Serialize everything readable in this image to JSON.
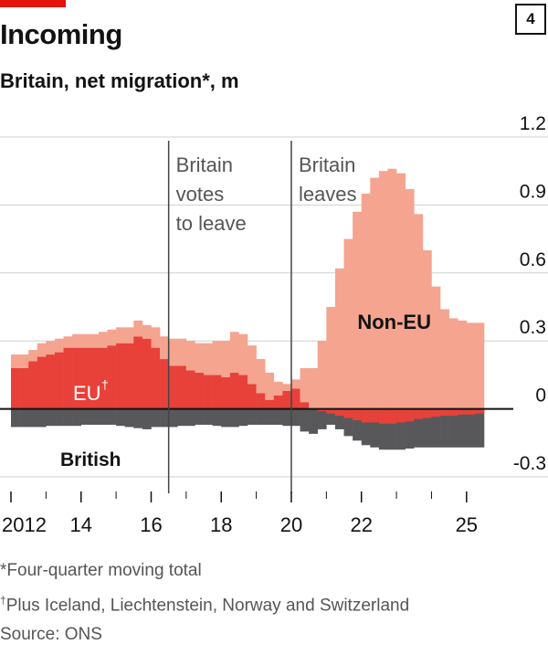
{
  "header": {
    "title": "Incoming",
    "subtitle": "Britain, net migration*, m",
    "chart_number": "4"
  },
  "footnotes": {
    "moving_total": "*Four-quarter moving total",
    "eu_mark": "†",
    "eu_def": "Plus Iceland, Liechtenstein, Norway and Switzerland",
    "source": "Source: ONS"
  },
  "colors": {
    "non_eu": "#f4a48f",
    "eu": "#e8413a",
    "british": "#58585b",
    "grid": "#cfcfcf",
    "axis": "#121212",
    "accent": "#e3120b"
  },
  "chart_data": {
    "type": "bar",
    "stacked": true,
    "x_start": 2012.0,
    "x_step": 0.25,
    "ylim": [
      -0.3,
      1.2
    ],
    "y_ticks": [
      -0.3,
      0,
      0.3,
      0.6,
      0.9,
      1.2
    ],
    "y_tick_labels": [
      "-0.3",
      "0",
      "0.3",
      "0.6",
      "0.9",
      "1.2"
    ],
    "x_ticks": [
      2012,
      2014,
      2016,
      2018,
      2020,
      2022,
      2025
    ],
    "x_tick_labels": [
      "2012",
      "14",
      "16",
      "18",
      "20",
      "22",
      "25"
    ],
    "series": [
      {
        "name": "British",
        "values": [
          -0.08,
          -0.08,
          -0.08,
          -0.08,
          -0.075,
          -0.075,
          -0.075,
          -0.075,
          -0.07,
          -0.07,
          -0.07,
          -0.07,
          -0.075,
          -0.08,
          -0.085,
          -0.09,
          -0.08,
          -0.08,
          -0.08,
          -0.075,
          -0.075,
          -0.07,
          -0.07,
          -0.075,
          -0.08,
          -0.08,
          -0.075,
          -0.07,
          -0.07,
          -0.07,
          -0.07,
          -0.075,
          -0.075,
          -0.1,
          -0.11,
          -0.09,
          -0.07,
          -0.09,
          -0.12,
          -0.14,
          -0.16,
          -0.17,
          -0.18,
          -0.18,
          -0.18,
          -0.175,
          -0.17,
          -0.17,
          -0.17,
          -0.17,
          -0.17,
          -0.17,
          -0.17,
          -0.17
        ]
      },
      {
        "name": "EU†",
        "values": [
          0.18,
          0.18,
          0.21,
          0.23,
          0.24,
          0.25,
          0.27,
          0.27,
          0.27,
          0.27,
          0.27,
          0.28,
          0.29,
          0.29,
          0.32,
          0.31,
          0.27,
          0.22,
          0.19,
          0.19,
          0.17,
          0.16,
          0.15,
          0.15,
          0.14,
          0.16,
          0.15,
          0.11,
          0.07,
          0.04,
          0.06,
          0.08,
          0.09,
          0.03,
          0.0,
          -0.01,
          -0.02,
          -0.03,
          -0.04,
          -0.05,
          -0.06,
          -0.06,
          -0.065,
          -0.065,
          -0.06,
          -0.055,
          -0.045,
          -0.04,
          -0.035,
          -0.03,
          -0.03,
          -0.025,
          -0.025,
          -0.02
        ]
      },
      {
        "name": "Non-EU",
        "values": [
          0.06,
          0.06,
          0.05,
          0.06,
          0.06,
          0.06,
          0.05,
          0.06,
          0.06,
          0.06,
          0.07,
          0.07,
          0.07,
          0.07,
          0.07,
          0.06,
          0.09,
          0.1,
          0.12,
          0.12,
          0.13,
          0.13,
          0.14,
          0.15,
          0.16,
          0.18,
          0.18,
          0.17,
          0.15,
          0.12,
          0.06,
          0.03,
          0.04,
          0.15,
          0.18,
          0.3,
          0.45,
          0.62,
          0.75,
          0.87,
          0.95,
          1.02,
          1.05,
          1.06,
          1.04,
          0.97,
          0.86,
          0.7,
          0.54,
          0.44,
          0.4,
          0.39,
          0.38,
          0.38
        ]
      }
    ],
    "annotations": [
      {
        "x": 2016.5,
        "lines": [
          "Britain",
          "votes",
          "to leave"
        ]
      },
      {
        "x": 2020.0,
        "lines": [
          "Britain",
          "leaves"
        ]
      }
    ],
    "series_labels": {
      "non_eu": "Non-EU",
      "eu": "EU",
      "eu_mark": "†",
      "british": "British"
    },
    "grid": true
  }
}
